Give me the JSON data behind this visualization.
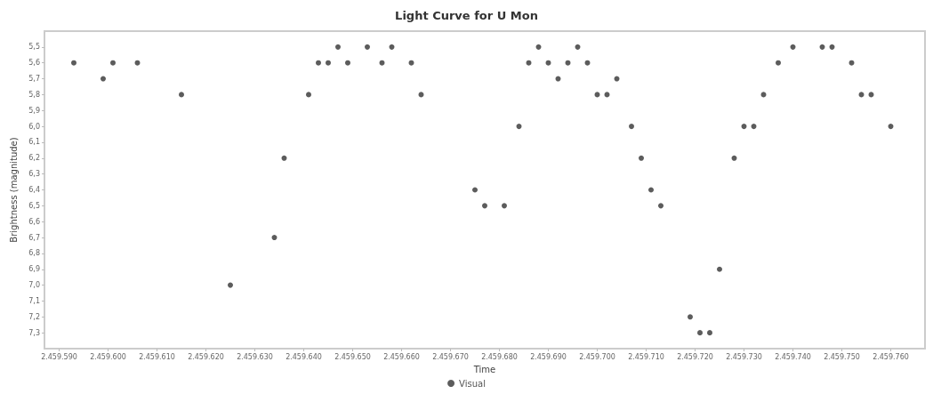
{
  "chart_data": {
    "type": "scatter",
    "title": "Light Curve for U Mon",
    "xlabel": "Time",
    "ylabel": "Brightness (magnitude)",
    "series": [
      {
        "name": "Visual",
        "color": "#333333",
        "x": [
          2459593,
          2459599,
          2459601,
          2459606,
          2459615,
          2459625,
          2459634,
          2459636,
          2459641,
          2459643,
          2459645,
          2459647,
          2459649,
          2459653,
          2459656,
          2459658,
          2459662,
          2459664,
          2459675,
          2459677,
          2459681,
          2459684,
          2459686,
          2459688,
          2459690,
          2459692,
          2459694,
          2459696,
          2459698,
          2459700,
          2459702,
          2459704,
          2459707,
          2459709,
          2459711,
          2459713,
          2459719,
          2459721,
          2459723,
          2459725,
          2459728,
          2459730,
          2459732,
          2459734,
          2459737,
          2459740,
          2459746,
          2459748,
          2459752,
          2459754,
          2459756,
          2459760
        ],
        "values": [
          5.6,
          5.7,
          5.6,
          5.6,
          5.8,
          7.0,
          6.7,
          6.2,
          5.8,
          5.6,
          5.6,
          5.5,
          5.6,
          5.5,
          5.6,
          5.5,
          5.6,
          5.8,
          6.4,
          6.5,
          6.5,
          6.0,
          5.6,
          5.5,
          5.6,
          5.7,
          5.6,
          5.5,
          5.6,
          5.8,
          5.8,
          5.7,
          6.0,
          6.2,
          6.4,
          6.5,
          7.2,
          7.3,
          7.3,
          6.9,
          6.2,
          6.0,
          6.0,
          5.8,
          5.6,
          5.5,
          5.5,
          5.5,
          5.6,
          5.8,
          5.8,
          6.0
        ]
      }
    ],
    "xlim": [
      2459587,
      2459767
    ],
    "xticks": [
      {
        "value": 2459590,
        "label": "2.459.590"
      },
      {
        "value": 2459600,
        "label": "2.459.600"
      },
      {
        "value": 2459610,
        "label": "2.459.610"
      },
      {
        "value": 2459620,
        "label": "2.459.620"
      },
      {
        "value": 2459630,
        "label": "2.459.630"
      },
      {
        "value": 2459640,
        "label": "2.459.640"
      },
      {
        "value": 2459650,
        "label": "2.459.650"
      },
      {
        "value": 2459660,
        "label": "2.459.660"
      },
      {
        "value": 2459670,
        "label": "2.459.670"
      },
      {
        "value": 2459680,
        "label": "2.459.680"
      },
      {
        "value": 2459690,
        "label": "2.459.690"
      },
      {
        "value": 2459700,
        "label": "2.459.700"
      },
      {
        "value": 2459710,
        "label": "2.459.710"
      },
      {
        "value": 2459720,
        "label": "2.459.720"
      },
      {
        "value": 2459730,
        "label": "2.459.730"
      },
      {
        "value": 2459740,
        "label": "2.459.740"
      },
      {
        "value": 2459750,
        "label": "2.459.750"
      },
      {
        "value": 2459760,
        "label": "2.459.760"
      }
    ],
    "ylim": [
      7.4,
      5.4
    ],
    "yticks": [
      {
        "value": 5.5,
        "label": "5,5"
      },
      {
        "value": 5.6,
        "label": "5,6"
      },
      {
        "value": 5.7,
        "label": "5,7"
      },
      {
        "value": 5.8,
        "label": "5,8"
      },
      {
        "value": 5.9,
        "label": "5,9"
      },
      {
        "value": 6.0,
        "label": "6,0"
      },
      {
        "value": 6.1,
        "label": "6,1"
      },
      {
        "value": 6.2,
        "label": "6,2"
      },
      {
        "value": 6.3,
        "label": "6,3"
      },
      {
        "value": 6.4,
        "label": "6,4"
      },
      {
        "value": 6.5,
        "label": "6,5"
      },
      {
        "value": 6.6,
        "label": "6,6"
      },
      {
        "value": 6.7,
        "label": "6,7"
      },
      {
        "value": 6.8,
        "label": "6,8"
      },
      {
        "value": 6.9,
        "label": "6,9"
      },
      {
        "value": 7.0,
        "label": "7,0"
      },
      {
        "value": 7.1,
        "label": "7,1"
      },
      {
        "value": 7.2,
        "label": "7,2"
      },
      {
        "value": 7.3,
        "label": "7,3"
      }
    ],
    "grid": false,
    "legend": "bottom",
    "marker": "circle"
  }
}
